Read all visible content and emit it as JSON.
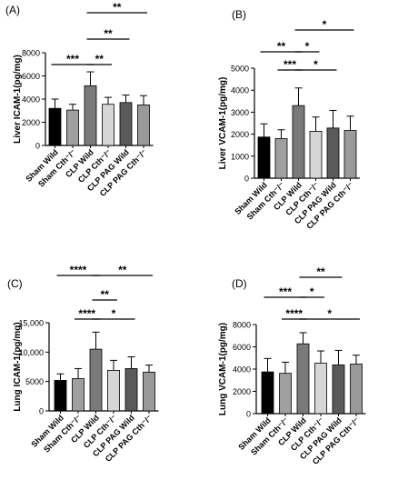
{
  "chart_data": [
    {
      "type": "bar",
      "panel_label": "(A)",
      "ylabel": "Liver ICAM-1(pg/mg)",
      "ylim": [
        0,
        8000
      ],
      "yticks": [
        "0",
        "2000",
        "4000",
        "6000",
        "8000"
      ],
      "ytick_values": [
        0,
        2000,
        4000,
        6000,
        8000
      ],
      "categories": [
        "Sham Wild",
        "Sham Cth⁻/⁻",
        "CLP Wild",
        "CLP Cth⁻/⁻",
        "CLP PAG Wild",
        "CLP PAG Cth⁻/⁻"
      ],
      "values": [
        3200,
        3050,
        5150,
        3550,
        3700,
        3500
      ],
      "errors": [
        800,
        500,
        1200,
        600,
        650,
        800
      ],
      "colors": [
        "#000000",
        "#a0a0a0",
        "#7a7a7a",
        "#d6d6d6",
        "#5a5a5a",
        "#9a9a9a"
      ],
      "significance": [
        {
          "from": 0,
          "to": 2,
          "label": "***"
        },
        {
          "from": 2,
          "to": 3,
          "label": "**"
        },
        {
          "from": 2,
          "to": 4,
          "label": "**"
        },
        {
          "from": 2,
          "to": 5,
          "label": "**"
        }
      ]
    },
    {
      "type": "bar",
      "panel_label": "(B)",
      "ylabel": "Liver VCAM-1(pg/mg)",
      "ylim": [
        0,
        5000
      ],
      "yticks": [
        "0",
        "1000",
        "2000",
        "3000",
        "4000",
        "5000"
      ],
      "ytick_values": [
        0,
        1000,
        2000,
        3000,
        4000,
        5000
      ],
      "categories": [
        "Sham Wild",
        "Sham Cth⁻/⁻",
        "CLP Wild",
        "CLP Cth⁻/⁻",
        "CLP PAG Wild",
        "CLP PAG Cth⁻/⁻"
      ],
      "values": [
        1870,
        1800,
        3300,
        2130,
        2280,
        2170
      ],
      "errors": [
        600,
        400,
        800,
        650,
        800,
        650
      ],
      "colors": [
        "#000000",
        "#a0a0a0",
        "#7a7a7a",
        "#d6d6d6",
        "#5a5a5a",
        "#9a9a9a"
      ],
      "significance": [
        {
          "from": 0,
          "to": 2,
          "label": "**"
        },
        {
          "from": 1,
          "to": 2,
          "label": "***"
        },
        {
          "from": 2,
          "to": 3,
          "label": "*"
        },
        {
          "from": 2,
          "to": 4,
          "label": "*"
        },
        {
          "from": 2,
          "to": 5,
          "label": "*"
        }
      ]
    },
    {
      "type": "bar",
      "panel_label": "(C)",
      "ylabel": "Lung ICAM-1(pg/mg)",
      "ylim": [
        0,
        15000
      ],
      "yticks": [
        "0",
        "5000",
        "10,000",
        "15,000"
      ],
      "ytick_values": [
        0,
        5000,
        10000,
        15000
      ],
      "categories": [
        "Sham Wild",
        "Sham Cth⁻/⁻",
        "CLP Wild",
        "CLP Cth⁻/⁻",
        "CLP PAG Wild",
        "CLP PAG Cth⁻/⁻"
      ],
      "values": [
        5200,
        5500,
        10500,
        6900,
        7200,
        6600
      ],
      "errors": [
        1100,
        1700,
        2900,
        1700,
        2000,
        1200
      ],
      "colors": [
        "#000000",
        "#a0a0a0",
        "#7a7a7a",
        "#d6d6d6",
        "#5a5a5a",
        "#9a9a9a"
      ],
      "significance": [
        {
          "from": 0,
          "to": 2,
          "label": "****"
        },
        {
          "from": 1,
          "to": 2,
          "label": "****"
        },
        {
          "from": 2,
          "to": 3,
          "label": "**"
        },
        {
          "from": 2,
          "to": 4,
          "label": "*"
        },
        {
          "from": 2,
          "to": 5,
          "label": "**"
        }
      ]
    },
    {
      "type": "bar",
      "panel_label": "(D)",
      "ylabel": "Lung VCAM-1(pg/mg)",
      "ylim": [
        0,
        8000
      ],
      "yticks": [
        "0",
        "2000",
        "4000",
        "6000",
        "8000"
      ],
      "ytick_values": [
        0,
        2000,
        4000,
        6000,
        8000
      ],
      "categories": [
        "Sham Wild",
        "Sham Cth⁻/⁻",
        "CLP Wild",
        "CLP Cth⁻/⁻",
        "CLP PAG Wild",
        "CLP PAG Cth⁻/⁻"
      ],
      "values": [
        3750,
        3620,
        6270,
        4530,
        4380,
        4450
      ],
      "errors": [
        1200,
        1000,
        1000,
        1100,
        1300,
        800
      ],
      "colors": [
        "#000000",
        "#a0a0a0",
        "#7a7a7a",
        "#d6d6d6",
        "#5a5a5a",
        "#9a9a9a"
      ],
      "significance": [
        {
          "from": 0,
          "to": 2,
          "label": "***"
        },
        {
          "from": 1,
          "to": 2,
          "label": "****"
        },
        {
          "from": 2,
          "to": 3,
          "label": "*"
        },
        {
          "from": 2,
          "to": 4,
          "label": "**"
        },
        {
          "from": 2,
          "to": 5,
          "label": "*"
        }
      ]
    }
  ]
}
